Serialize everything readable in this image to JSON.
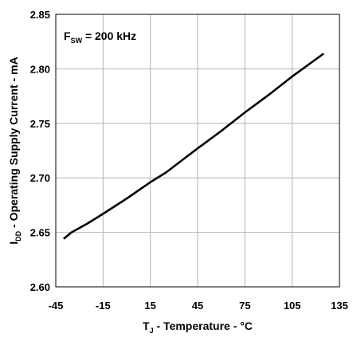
{
  "chart_data": {
    "type": "line",
    "xlabel": {
      "main": "T",
      "sub": "J",
      "rest": " - Temperature - °C"
    },
    "ylabel": {
      "main": "I",
      "sub": "DD",
      "rest": " - Operating Supply Current - mA"
    },
    "annotation": {
      "main": "F",
      "sub": "SW",
      "rest": " = 200 kHz"
    },
    "xlim": [
      -45,
      135
    ],
    "ylim": [
      2.6,
      2.85
    ],
    "xticks": [
      -45,
      -15,
      15,
      45,
      75,
      105,
      135
    ],
    "yticks": [
      2.6,
      2.65,
      2.7,
      2.75,
      2.8,
      2.85
    ],
    "xtick_labels": [
      "-45",
      "-15",
      "15",
      "45",
      "75",
      "105",
      "135"
    ],
    "ytick_labels": [
      "2.60",
      "2.65",
      "2.70",
      "2.75",
      "2.80",
      "2.85"
    ],
    "grid": true,
    "line_color": "#000000",
    "grid_color": "#b4b4b4",
    "series": [
      {
        "x": [
          -40,
          -35,
          -25,
          -15,
          0,
          15,
          25,
          45,
          60,
          75,
          90,
          105,
          125
        ],
        "y": [
          2.644,
          2.65,
          2.658,
          2.667,
          2.681,
          2.696,
          2.705,
          2.727,
          2.743,
          2.76,
          2.776,
          2.793,
          2.814
        ]
      }
    ]
  }
}
